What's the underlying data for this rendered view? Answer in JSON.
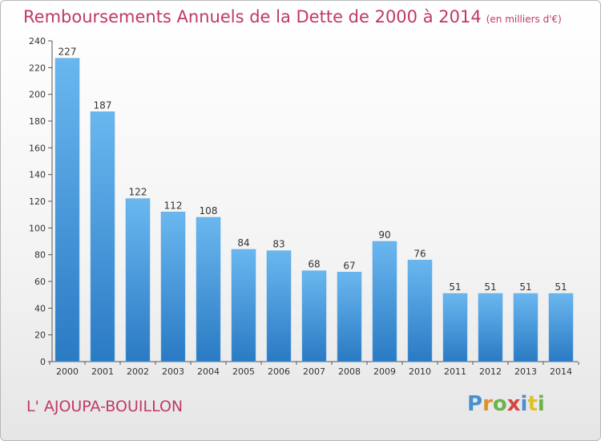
{
  "header": {
    "title": "Remboursements Annuels de la Dette de 2000 à 2014",
    "subtitle": "(en milliers d'€)"
  },
  "footer": {
    "location": "L' AJOUPA-BOUILLON",
    "logo_text": "Proxiti"
  },
  "colors": {
    "title": "#c0386a",
    "bar_light": "#6ab7ef",
    "bar_dark": "#2a7ac4"
  },
  "chart_data": {
    "type": "bar",
    "title": "Remboursements Annuels de la Dette de 2000 à 2014",
    "subtitle": "(en milliers d'€)",
    "xlabel": "",
    "ylabel": "",
    "categories": [
      "2000",
      "2001",
      "2002",
      "2003",
      "2004",
      "2005",
      "2006",
      "2007",
      "2008",
      "2009",
      "2010",
      "2011",
      "2012",
      "2013",
      "2014"
    ],
    "values": [
      227,
      187,
      122,
      112,
      108,
      84,
      83,
      68,
      67,
      90,
      76,
      51,
      51,
      51,
      51
    ],
    "ylim": [
      0,
      240
    ],
    "yticks": [
      0,
      20,
      40,
      60,
      80,
      100,
      120,
      140,
      160,
      180,
      200,
      220,
      240
    ],
    "grid": false,
    "data_labels": true
  }
}
